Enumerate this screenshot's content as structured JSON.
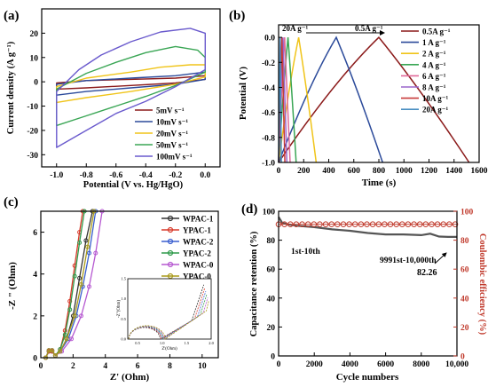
{
  "panels": {
    "a": {
      "label": "(a)"
    },
    "b": {
      "label": "(b)"
    },
    "c": {
      "label": "(c)"
    },
    "d": {
      "label": "(d)"
    }
  },
  "chart_data": [
    {
      "panel": "a",
      "type": "line",
      "xlabel": "Potential (V vs. Hg/HgO)",
      "ylabel": "Current density (A g⁻¹)",
      "xlim": [
        -1.1,
        0.1
      ],
      "ylim": [
        -35,
        30
      ],
      "xticks": [
        -1.0,
        -0.8,
        -0.6,
        -0.4,
        -0.2,
        0.0
      ],
      "xtick_labels": [
        "-1.0",
        "-0.8",
        "-0.6",
        "-0.4",
        "-0.2",
        "0.0"
      ],
      "yticks": [
        -30,
        -20,
        -10,
        0,
        10,
        20
      ],
      "ytick_labels": [
        "-30",
        "-20",
        "-10",
        "0",
        "10",
        "20"
      ],
      "legend_position": "bottom-right",
      "series": [
        {
          "name": "5mV s⁻¹",
          "color": "#8b1a1a",
          "upper": [
            [
              -1.0,
              -0.5
            ],
            [
              -0.8,
              0.5
            ],
            [
              -0.5,
              1.0
            ],
            [
              -0.2,
              1.5
            ],
            [
              0.0,
              2.5
            ]
          ],
          "lower": [
            [
              0.0,
              1.0
            ],
            [
              -0.2,
              -0.5
            ],
            [
              -0.5,
              -1.5
            ],
            [
              -0.8,
              -2.5
            ],
            [
              -1.0,
              -3.0
            ]
          ]
        },
        {
          "name": "10mV s⁻¹",
          "color": "#2b4a9a",
          "upper": [
            [
              -1.0,
              -1.0
            ],
            [
              -0.8,
              0.5
            ],
            [
              -0.5,
              1.5
            ],
            [
              -0.2,
              2.5
            ],
            [
              0.0,
              4.0
            ]
          ],
          "lower": [
            [
              0.0,
              1.0
            ],
            [
              -0.2,
              -1.0
            ],
            [
              -0.5,
              -2.5
            ],
            [
              -0.8,
              -4.0
            ],
            [
              -1.0,
              -5.5
            ]
          ]
        },
        {
          "name": "20mV s⁻¹",
          "color": "#f0c419",
          "upper": [
            [
              -1.0,
              -2.0
            ],
            [
              -0.8,
              1.5
            ],
            [
              -0.5,
              4.0
            ],
            [
              -0.3,
              6.0
            ],
            [
              -0.1,
              7.0
            ],
            [
              0.0,
              7.0
            ]
          ],
          "lower": [
            [
              0.0,
              2.0
            ],
            [
              -0.2,
              -1.0
            ],
            [
              -0.5,
              -4.0
            ],
            [
              -0.8,
              -6.5
            ],
            [
              -1.0,
              -8.5
            ]
          ]
        },
        {
          "name": "50mV s⁻¹",
          "color": "#3aa655",
          "upper": [
            [
              -1.0,
              -3.0
            ],
            [
              -0.8,
              3.5
            ],
            [
              -0.6,
              8.0
            ],
            [
              -0.4,
              12.0
            ],
            [
              -0.2,
              14.5
            ],
            [
              -0.05,
              13.0
            ],
            [
              0.0,
              10.0
            ]
          ],
          "lower": [
            [
              0.0,
              4.0
            ],
            [
              -0.2,
              -1.5
            ],
            [
              -0.4,
              -6.0
            ],
            [
              -0.6,
              -10.0
            ],
            [
              -0.8,
              -14.0
            ],
            [
              -1.0,
              -18.0
            ]
          ]
        },
        {
          "name": "100mV s⁻¹",
          "color": "#6a5acd",
          "upper": [
            [
              -1.0,
              -4.0
            ],
            [
              -0.85,
              5.0
            ],
            [
              -0.7,
              11.0
            ],
            [
              -0.5,
              16.5
            ],
            [
              -0.3,
              20.5
            ],
            [
              -0.1,
              22.0
            ],
            [
              0.0,
              20.0
            ]
          ],
          "lower": [
            [
              0.0,
              5.0
            ],
            [
              -0.2,
              -2.0
            ],
            [
              -0.4,
              -8.0
            ],
            [
              -0.6,
              -13.0
            ],
            [
              -0.8,
              -20.0
            ],
            [
              -1.0,
              -27.0
            ]
          ]
        }
      ]
    },
    {
      "panel": "b",
      "type": "line",
      "xlabel": "Time (s)",
      "ylabel": "Potential (V)",
      "xlim": [
        0,
        1600
      ],
      "ylim": [
        -1.0,
        0.1
      ],
      "xticks": [
        0,
        200,
        400,
        600,
        800,
        1000,
        1200,
        1400,
        1600
      ],
      "xtick_labels": [
        "0",
        "200",
        "400",
        "600",
        "800",
        "1000",
        "1200",
        "1400",
        "1600"
      ],
      "yticks": [
        -1.0,
        -0.8,
        -0.6,
        -0.4,
        -0.2,
        0.0
      ],
      "ytick_labels": [
        "-1.0",
        "-0.8",
        "-0.6",
        "-0.4",
        "-0.2",
        "0.0"
      ],
      "annotations": [
        "20A g⁻¹",
        "0.5A g⁻¹"
      ],
      "legend_position": "right",
      "series": [
        {
          "name": "0.5A g⁻¹",
          "color": "#8b1a1a",
          "charge_end": 800,
          "discharge_end": 1520
        },
        {
          "name": "1  A g⁻¹",
          "color": "#2b4a9a",
          "charge_end": 460,
          "discharge_end": 830
        },
        {
          "name": "2  A g⁻¹",
          "color": "#f0c419",
          "charge_end": 160,
          "discharge_end": 300
        },
        {
          "name": "4  A g⁻¹",
          "color": "#3aa655",
          "charge_end": 75,
          "discharge_end": 140
        },
        {
          "name": "6  A g⁻¹",
          "color": "#e06a9a",
          "charge_end": 48,
          "discharge_end": 92
        },
        {
          "name": "8  A g⁻¹",
          "color": "#9a66cc",
          "charge_end": 35,
          "discharge_end": 66
        },
        {
          "name": "10A g⁻¹",
          "color": "#c73a3a",
          "charge_end": 26,
          "discharge_end": 50
        },
        {
          "name": "20A g⁻¹",
          "color": "#4a8fc2",
          "charge_end": 12,
          "discharge_end": 22
        }
      ]
    },
    {
      "panel": "c",
      "type": "line",
      "xlabel": "Z' (Ohm)",
      "ylabel": "-Z \" (Ohm)",
      "xlim": [
        0,
        11
      ],
      "ylim": [
        0,
        7
      ],
      "xticks": [
        0,
        2,
        4,
        6,
        8,
        10
      ],
      "xtick_labels": [
        "0",
        "2",
        "4",
        "6",
        "8",
        "10"
      ],
      "yticks": [
        0,
        2,
        4,
        6
      ],
      "ytick_labels": [
        "0",
        "2",
        "4",
        "6"
      ],
      "legend_position": "top-right",
      "series": [
        {
          "name": "WPAC-1",
          "color": "#333333",
          "points": [
            [
              0.3,
              0
            ],
            [
              0.5,
              0.3
            ],
            [
              0.7,
              0.3
            ],
            [
              0.9,
              0.1
            ],
            [
              1.2,
              0.3
            ],
            [
              1.6,
              0.9
            ],
            [
              2.0,
              2.0
            ],
            [
              2.4,
              3.8
            ],
            [
              2.8,
              5.6
            ],
            [
              3.2,
              7.0
            ]
          ]
        },
        {
          "name": "YPAC-1",
          "color": "#d83a2a",
          "points": [
            [
              0.3,
              0
            ],
            [
              0.5,
              0.3
            ],
            [
              0.7,
              0.3
            ],
            [
              0.9,
              0.1
            ],
            [
              1.2,
              0.4
            ],
            [
              1.5,
              1.3
            ],
            [
              1.8,
              2.7
            ],
            [
              2.1,
              4.4
            ],
            [
              2.4,
              6.0
            ],
            [
              2.6,
              7.0
            ]
          ]
        },
        {
          "name": "WPAC-2",
          "color": "#3a5fcf",
          "points": [
            [
              0.3,
              0
            ],
            [
              0.5,
              0.35
            ],
            [
              0.7,
              0.35
            ],
            [
              0.9,
              0.1
            ],
            [
              1.2,
              0.3
            ],
            [
              1.7,
              0.9
            ],
            [
              2.2,
              2.0
            ],
            [
              2.6,
              3.4
            ],
            [
              3.0,
              5.0
            ],
            [
              3.4,
              7.0
            ]
          ]
        },
        {
          "name": "YPAC-2",
          "color": "#2e9a4a",
          "points": [
            [
              0.3,
              0
            ],
            [
              0.5,
              0.35
            ],
            [
              0.7,
              0.35
            ],
            [
              0.9,
              0.1
            ],
            [
              1.2,
              0.4
            ],
            [
              1.5,
              1.1
            ],
            [
              1.8,
              2.3
            ],
            [
              2.1,
              3.9
            ],
            [
              2.4,
              5.5
            ],
            [
              2.7,
              7.0
            ]
          ]
        },
        {
          "name": "WPAC-0",
          "color": "#b659d1",
          "points": [
            [
              0.3,
              0
            ],
            [
              0.5,
              0.35
            ],
            [
              0.7,
              0.35
            ],
            [
              0.9,
              0.1
            ],
            [
              1.3,
              0.3
            ],
            [
              1.9,
              0.9
            ],
            [
              2.5,
              2.0
            ],
            [
              3.0,
              3.4
            ],
            [
              3.4,
              5.0
            ],
            [
              3.8,
              7.0
            ]
          ]
        },
        {
          "name": "YPAC-0",
          "color": "#a99a1a",
          "points": [
            [
              0.3,
              0
            ],
            [
              0.5,
              0.35
            ],
            [
              0.7,
              0.35
            ],
            [
              0.9,
              0.1
            ],
            [
              1.2,
              0.3
            ],
            [
              1.6,
              0.9
            ],
            [
              2.1,
              2.0
            ],
            [
              2.5,
              3.5
            ],
            [
              2.9,
              5.3
            ],
            [
              3.3,
              7.0
            ]
          ]
        }
      ],
      "inset": {
        "xlabel": "Z'(Ohm)",
        "ylabel": "-Z\"(Ohm)",
        "xticks": [
          0.5,
          1.0,
          1.5,
          2.0
        ],
        "xtick_labels": [
          "0.5",
          "1.0",
          "1.5",
          "2.0"
        ],
        "yticks": [
          0.0,
          0.5,
          1.0,
          1.5
        ],
        "ytick_labels": [
          "0.0",
          "0.5",
          "1.0",
          "1.5"
        ],
        "xlim": [
          0.3,
          2.0
        ],
        "ylim": [
          0,
          1.5
        ]
      }
    },
    {
      "panel": "d",
      "type": "scatter",
      "xlabel": "Cycle numbers",
      "ylabel": "Capacitance retention (%)",
      "y2label": "Coulombic efficiency (%)",
      "xlim": [
        0,
        10000
      ],
      "ylim": [
        0,
        100
      ],
      "y2lim": [
        0,
        100
      ],
      "xticks": [
        0,
        2000,
        4000,
        6000,
        8000,
        10000
      ],
      "xtick_labels": [
        "0",
        "2000",
        "4000",
        "6000",
        "8000",
        "10,000"
      ],
      "yticks": [
        0,
        20,
        40,
        60,
        80,
        100
      ],
      "ytick_labels": [
        "0",
        "20",
        "40",
        "60",
        "80",
        "100"
      ],
      "y2ticks": [
        0,
        20,
        40,
        60,
        80,
        100
      ],
      "y2tick_labels": [
        "0",
        "20",
        "40",
        "60",
        "80",
        "100"
      ],
      "annotations": [
        "1st-10th",
        "9991st-10,000th",
        "82.26"
      ],
      "series": [
        {
          "name": "Capacitance retention",
          "color": "#555555",
          "points": [
            [
              0,
              96
            ],
            [
              200,
              92
            ],
            [
              500,
              91
            ],
            [
              1000,
              90
            ],
            [
              2000,
              89
            ],
            [
              3000,
              87.5
            ],
            [
              4000,
              86.5
            ],
            [
              5000,
              85
            ],
            [
              6000,
              84
            ],
            [
              7000,
              84
            ],
            [
              8000,
              83.5
            ],
            [
              8500,
              84.5
            ],
            [
              9000,
              82.5
            ],
            [
              9500,
              82.3
            ],
            [
              10000,
              82.26
            ]
          ]
        },
        {
          "name": "Coulombic efficiency",
          "color": "#c0392b",
          "value": 91
        }
      ]
    }
  ]
}
